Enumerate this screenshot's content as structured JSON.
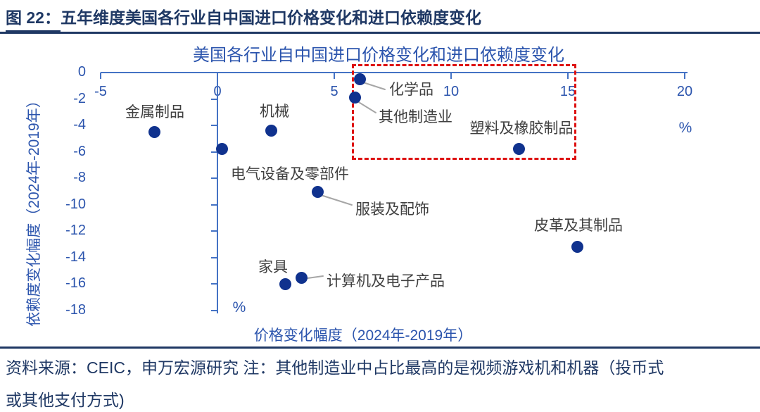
{
  "header": {
    "figure_label": "图 22：",
    "figure_title": "五年维度美国各行业自中国进口价格变化和进口依赖度变化"
  },
  "footer": {
    "line1": "资料来源：CEIC，申万宏源研究 注：其他制造业中占比最高的是视频游戏机和机器（投币式",
    "line2": "或其他支付方式)"
  },
  "colors": {
    "header_text": "#1f3864",
    "rules": "#1f3864",
    "chart_blue_text": "#2b54ad",
    "axis_line": "#4472c4",
    "point_fill": "#10328e",
    "point_label": "#404040",
    "connector_line": "#a6a6a6",
    "highlight_box": "#dd1111"
  },
  "chart_data": {
    "type": "scatter",
    "title": "美国各行业自中国进口价格变化和进口依赖度变化",
    "xlabel": "价格变化幅度（2024年-2019年）",
    "ylabel": "依赖度变化幅度（2024年-2019年）",
    "x_unit": "%",
    "y_unit": "%",
    "xlim": [
      -5,
      20
    ],
    "ylim": [
      -18,
      0
    ],
    "x_ticks": [
      -5,
      0,
      5,
      10,
      15,
      20
    ],
    "y_ticks": [
      0,
      -2,
      -4,
      -6,
      -8,
      -10,
      -12,
      -14,
      -16,
      -18
    ],
    "grid": false,
    "legend": "none",
    "points": [
      {
        "label": "金属制品",
        "x": -2.7,
        "y": -4.5
      },
      {
        "label": "机械",
        "x": 2.3,
        "y": -4.4
      },
      {
        "label": "电气设备及零部件",
        "x": 0.2,
        "y": -5.8
      },
      {
        "label": "化学品",
        "x": 6.1,
        "y": -0.5
      },
      {
        "label": "其他制造业",
        "x": 5.9,
        "y": -1.9
      },
      {
        "label": "塑料及橡胶制品",
        "x": 12.9,
        "y": -5.8
      },
      {
        "label": "服装及配饰",
        "x": 4.3,
        "y": -9.0
      },
      {
        "label": "皮革及其制品",
        "x": 15.4,
        "y": -13.2
      },
      {
        "label": "家具",
        "x": 2.9,
        "y": -16.0
      },
      {
        "label": "计算机及电子产品",
        "x": 3.6,
        "y": -15.5
      }
    ],
    "highlight_box": {
      "style": "red-dashed-rectangle",
      "x_range": [
        5.8,
        15.4
      ],
      "y_range": [
        0.6,
        -6.6
      ],
      "contains": [
        "化学品",
        "其他制造业",
        "塑料及橡胶制品"
      ]
    }
  }
}
